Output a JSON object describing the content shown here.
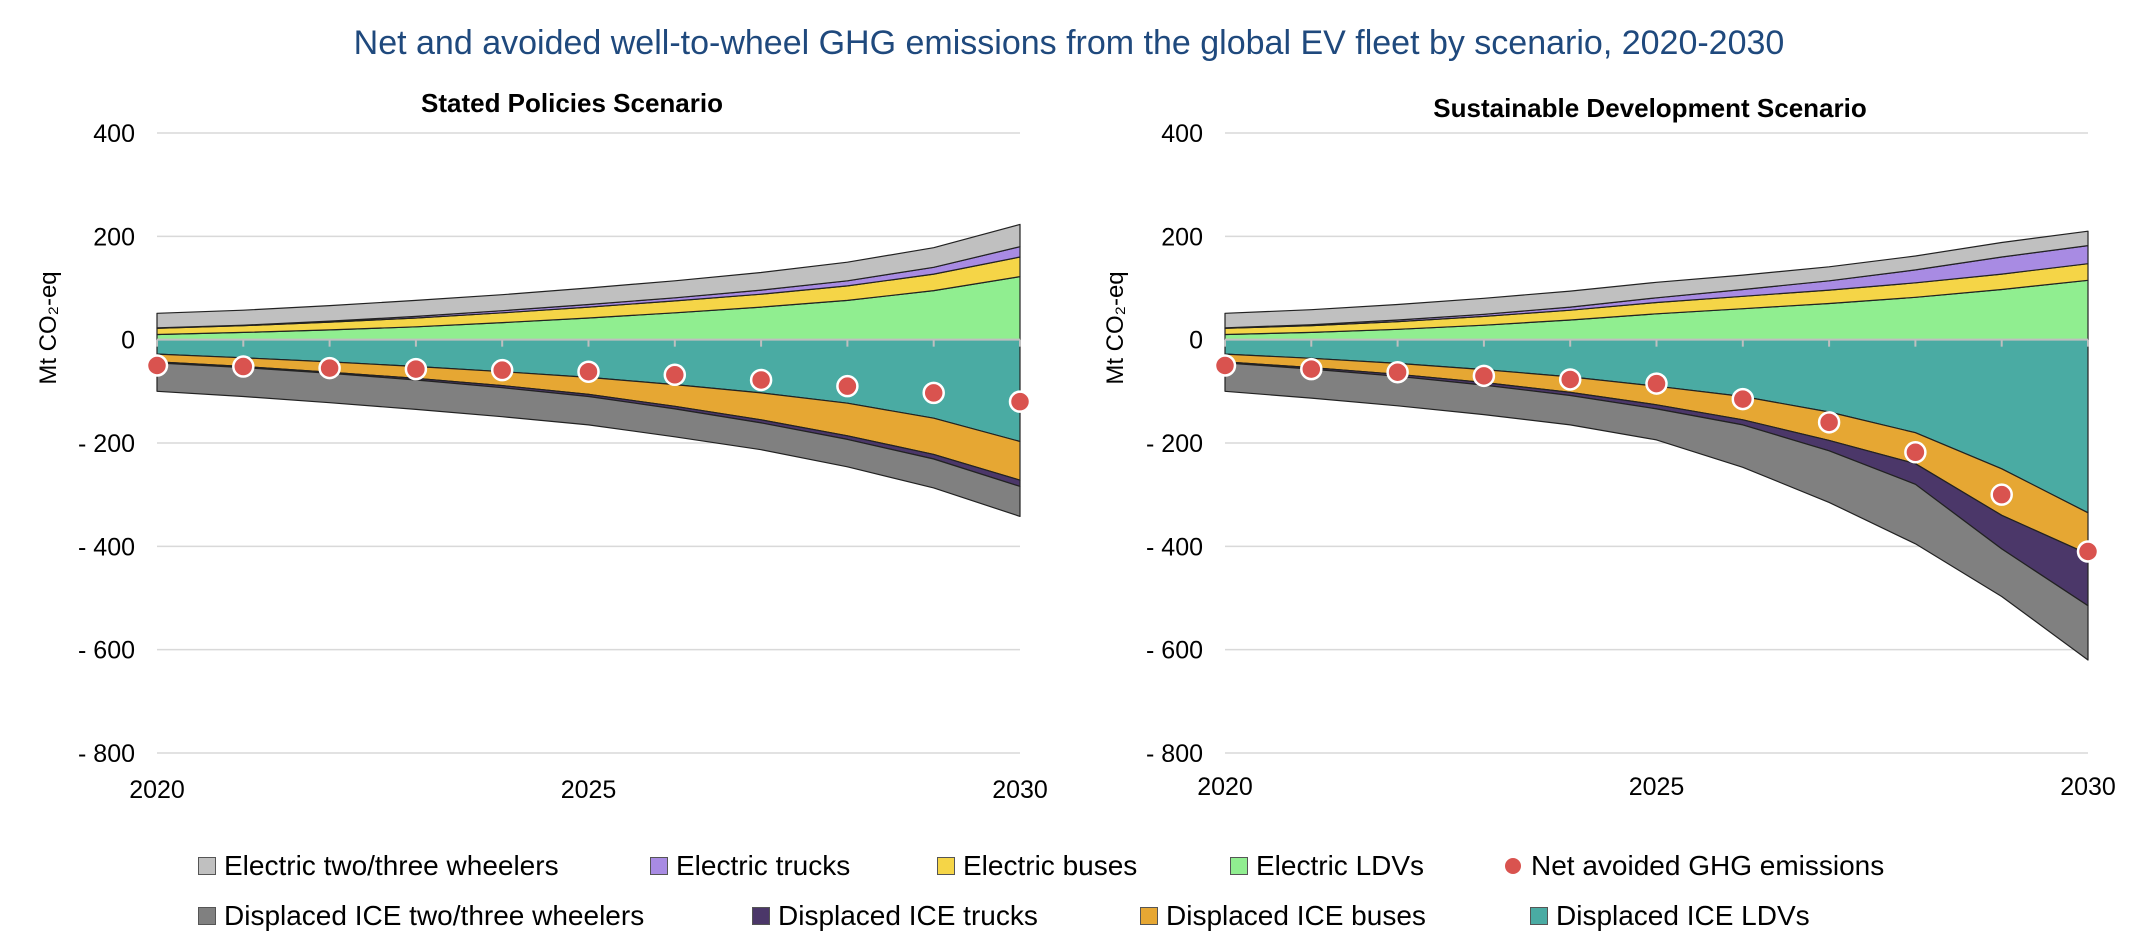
{
  "title": "Net and avoided well-to-wheel GHG emissions from the global EV fleet by scenario, 2020-2030",
  "y_axis_label": "Mt CO₂-eq",
  "chart_data": [
    {
      "type": "area",
      "title": "Stated Policies Scenario",
      "ylabel": "Mt CO₂-eq",
      "ylim": [
        -800,
        400
      ],
      "yticks": [
        400,
        200,
        0,
        -200,
        -400,
        -600,
        -800
      ],
      "ytick_labels": [
        "400",
        "200",
        "0",
        "- 200",
        "- 400",
        "- 600",
        "- 800"
      ],
      "xtick_labels": [
        "2020",
        "2025",
        "2030"
      ],
      "x": [
        2020,
        2021,
        2022,
        2023,
        2024,
        2025,
        2026,
        2027,
        2028,
        2029,
        2030
      ],
      "stack_positive": [
        {
          "name": "Electric LDVs",
          "color": "#90ee90",
          "values": [
            10,
            14,
            19,
            25,
            33,
            42,
            52,
            63,
            76,
            95,
            122
          ]
        },
        {
          "name": "Electric buses",
          "color": "#f5d547",
          "values": [
            12,
            13,
            15,
            17,
            19,
            21,
            23,
            25,
            28,
            32,
            38
          ]
        },
        {
          "name": "Electric trucks",
          "color": "#a88be3",
          "values": [
            1,
            1,
            2,
            3,
            4,
            5,
            6,
            8,
            10,
            13,
            20
          ]
        },
        {
          "name": "Electric two/three wheelers",
          "color": "#c0c0c0",
          "values": [
            28,
            29,
            30,
            31,
            31,
            32,
            33,
            34,
            36,
            38,
            43
          ]
        }
      ],
      "stack_negative": [
        {
          "name": "Displaced ICE LDVs",
          "color": "#4aaba3",
          "values": [
            -28,
            -35,
            -43,
            -52,
            -62,
            -73,
            -87,
            -103,
            -123,
            -152,
            -197
          ]
        },
        {
          "name": "Displaced ICE buses",
          "color": "#e6a733",
          "values": [
            -15,
            -17,
            -20,
            -23,
            -27,
            -33,
            -42,
            -52,
            -63,
            -70,
            -75
          ]
        },
        {
          "name": "Displaced ICE trucks",
          "color": "#4b3769",
          "values": [
            -2,
            -2,
            -2,
            -3,
            -4,
            -4,
            -5,
            -6,
            -7,
            -9,
            -12
          ]
        },
        {
          "name": "Displaced ICE two/three wheelers",
          "color": "#808080",
          "values": [
            -55,
            -56,
            -57,
            -57,
            -56,
            -55,
            -54,
            -52,
            -53,
            -56,
            -58
          ]
        }
      ],
      "net_avoided": {
        "name": "Net avoided GHG emissions",
        "color": "#d9534f",
        "values": [
          -50,
          -52,
          -55,
          -57,
          -59,
          -62,
          -68,
          -78,
          -90,
          -103,
          -120
        ]
      }
    },
    {
      "type": "area",
      "title": "Sustainable Development Scenario",
      "ylabel": "Mt CO₂-eq",
      "ylim": [
        -800,
        400
      ],
      "yticks": [
        400,
        200,
        0,
        -200,
        -400,
        -600,
        -800
      ],
      "ytick_labels": [
        "400",
        "200",
        "0",
        "- 200",
        "- 400",
        "- 600",
        "- 800"
      ],
      "xtick_labels": [
        "2020",
        "2025",
        "2030"
      ],
      "x": [
        2020,
        2021,
        2022,
        2023,
        2024,
        2025,
        2026,
        2027,
        2028,
        2029,
        2030
      ],
      "stack_positive": [
        {
          "name": "Electric LDVs",
          "color": "#90ee90",
          "values": [
            10,
            14,
            20,
            28,
            38,
            50,
            60,
            70,
            82,
            97,
            115
          ]
        },
        {
          "name": "Electric buses",
          "color": "#f5d547",
          "values": [
            12,
            13,
            15,
            17,
            19,
            22,
            24,
            26,
            28,
            30,
            32
          ]
        },
        {
          "name": "Electric trucks",
          "color": "#a88be3",
          "values": [
            1,
            2,
            3,
            4,
            6,
            9,
            13,
            18,
            25,
            33,
            35
          ]
        },
        {
          "name": "Electric two/three wheelers",
          "color": "#c0c0c0",
          "values": [
            28,
            29,
            30,
            31,
            31,
            30,
            28,
            27,
            27,
            28,
            28
          ]
        }
      ],
      "stack_negative": [
        {
          "name": "Displaced ICE LDVs",
          "color": "#4aaba3",
          "values": [
            -28,
            -36,
            -46,
            -58,
            -72,
            -90,
            -110,
            -140,
            -180,
            -250,
            -335
          ]
        },
        {
          "name": "Displaced ICE buses",
          "color": "#e6a733",
          "values": [
            -15,
            -18,
            -21,
            -25,
            -30,
            -36,
            -45,
            -55,
            -60,
            -90,
            -80
          ]
        },
        {
          "name": "Displaced ICE trucks",
          "color": "#4b3769",
          "values": [
            -2,
            -3,
            -4,
            -5,
            -6,
            -8,
            -10,
            -20,
            -40,
            -65,
            -100
          ]
        },
        {
          "name": "Displaced ICE two/three wheelers",
          "color": "#808080",
          "values": [
            -55,
            -56,
            -57,
            -57,
            -57,
            -60,
            -82,
            -100,
            -115,
            -92,
            -105
          ]
        }
      ],
      "net_avoided": {
        "name": "Net avoided GHG emissions",
        "color": "#d9534f",
        "values": [
          -50,
          -57,
          -63,
          -70,
          -77,
          -85,
          -115,
          -160,
          -218,
          -300,
          -410
        ]
      }
    }
  ],
  "legend": [
    {
      "label": "Electric two/three wheelers",
      "color": "#c0c0c0",
      "kind": "swatch"
    },
    {
      "label": "Electric trucks",
      "color": "#a88be3",
      "kind": "swatch"
    },
    {
      "label": "Electric buses",
      "color": "#f5d547",
      "kind": "swatch"
    },
    {
      "label": "Electric LDVs",
      "color": "#90ee90",
      "kind": "swatch"
    },
    {
      "label": "Net avoided GHG emissions",
      "color": "#d9534f",
      "kind": "dot"
    },
    {
      "label": "Displaced ICE two/three wheelers",
      "color": "#808080",
      "kind": "swatch"
    },
    {
      "label": "Displaced ICE trucks",
      "color": "#4b3769",
      "kind": "swatch"
    },
    {
      "label": "Displaced ICE buses",
      "color": "#e6a733",
      "kind": "swatch"
    },
    {
      "label": "Displaced ICE LDVs",
      "color": "#4aaba3",
      "kind": "swatch"
    }
  ]
}
